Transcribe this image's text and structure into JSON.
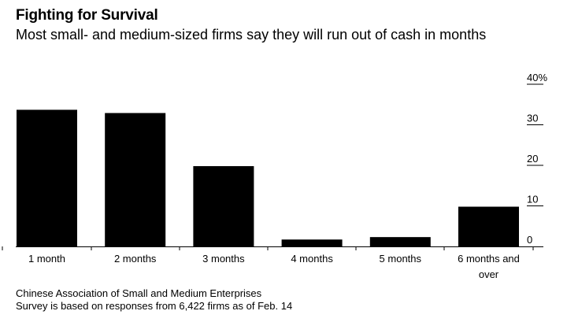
{
  "header": {
    "title": "Fighting for Survival",
    "subtitle": "Most small- and medium-sized firms say they will run out of cash in months"
  },
  "footer": {
    "source": "Chinese Association of Small and Medium Enterprises",
    "note": "Survey is based on responses from 6,422 firms as of Feb. 14"
  },
  "chart_data": {
    "type": "bar",
    "title": "Fighting for Survival",
    "subtitle": "Most small- and medium-sized firms say they will run out of cash in months",
    "categories": [
      "1 month",
      "2 months",
      "3 months",
      "4 months",
      "5 months",
      "6 months and over"
    ],
    "category_lines": [
      [
        "1 month"
      ],
      [
        "2 months"
      ],
      [
        "3 months"
      ],
      [
        "4 months"
      ],
      [
        "5 months"
      ],
      [
        "6 months and",
        "over"
      ]
    ],
    "values": [
      33.7,
      32.9,
      19.8,
      1.7,
      2.3,
      9.8
    ],
    "ylim": [
      0,
      40
    ],
    "yticks": [
      0,
      10,
      20,
      30,
      40
    ],
    "ytick_labels": [
      "0",
      "10",
      "20",
      "30",
      "40%"
    ],
    "xlabel": "",
    "ylabel": "",
    "yaxis_position": "right",
    "bar_color": "#000000",
    "grid": false
  }
}
